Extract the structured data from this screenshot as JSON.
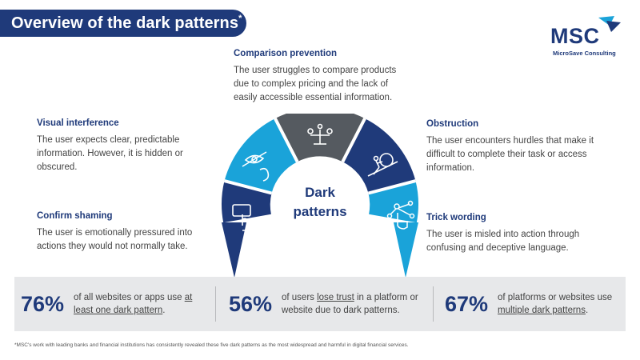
{
  "header": {
    "title": "Overview of the dark patterns",
    "title_mark": "*"
  },
  "logo": {
    "text": "MSC",
    "tagline": "MicroSave Consulting"
  },
  "center": {
    "line1": "Dark",
    "line2": "patterns"
  },
  "patterns": {
    "comparison": {
      "title": "Comparison prevention",
      "text": "The user struggles to compare products due to complex pricing and the lack of easily accessible essential information."
    },
    "visual": {
      "title": "Visual interference",
      "text": "The user expects clear, predictable information. However, it is hidden or obscured."
    },
    "obstruction": {
      "title": "Obstruction",
      "text": "The user encounters hurdles that make it difficult to complete their task or access information."
    },
    "confirm": {
      "title": "Confirm shaming",
      "text": "The user is emotionally pressured into actions they would not normally take."
    },
    "trick": {
      "title": "Trick wording",
      "text": "The user is misled into action through confusing and deceptive language."
    }
  },
  "stats": [
    {
      "value": "76%",
      "pre": "of all websites or apps use ",
      "link": "at least one dark pattern",
      "post": "."
    },
    {
      "value": "56%",
      "pre": "of users ",
      "link": "lose trust",
      "post": " in a platform or website due to dark patterns."
    },
    {
      "value": "67%",
      "pre": "of platforms or websites use ",
      "link": "multiple dark patterns",
      "post": "."
    }
  ],
  "footnote": "*MSC's work with leading banks and financial institutions has consistently revealed these five dark patterns as the most widespread and harmful in digital financial services.",
  "colors": {
    "navy": "#1f3a7a",
    "cyan": "#1aa3d9",
    "grey": "#555a60",
    "panel": "#e7e8ea"
  },
  "icons": [
    "hand-pointer-icon",
    "eye-magnifier-icon",
    "balance-scale-icon",
    "person-pushing-boulder-icon",
    "network-hand-icon"
  ]
}
